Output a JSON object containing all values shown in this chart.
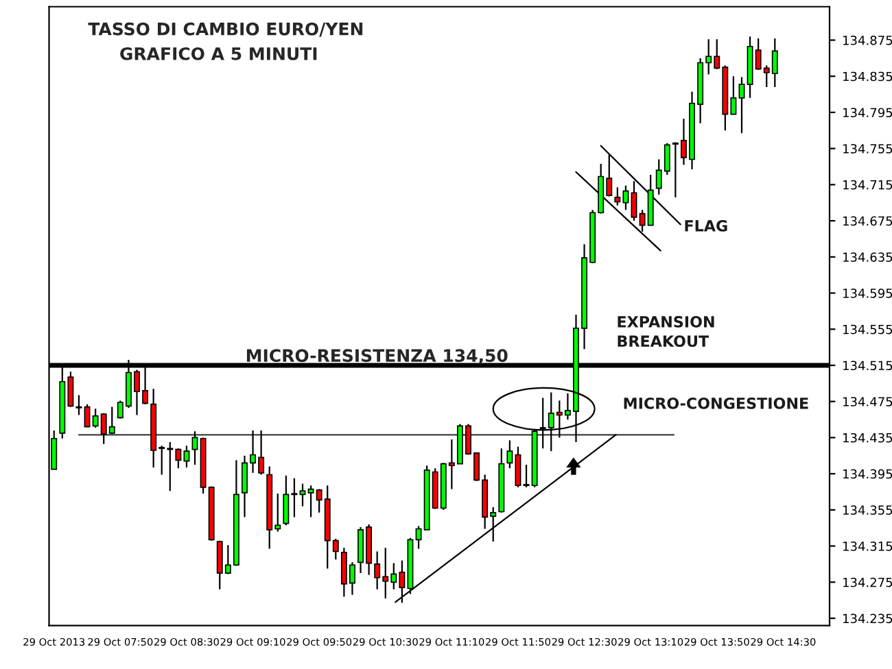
{
  "chart_data": {
    "type": "candlestick",
    "title": "TASSO DI CAMBIO EURO/YEN",
    "subtitle": "GRAFICO A 5 MINUTI",
    "xlim": [
      "2013-10-29T07:07",
      "2013-10-29T14:58"
    ],
    "xticks": [
      {
        "value": "2013-10-29T07:10",
        "label": "29 Oct 2013"
      },
      {
        "value": "2013-10-29T07:50",
        "label": "29 Oct 07:50"
      },
      {
        "value": "2013-10-29T08:30",
        "label": "29 Oct 08:30"
      },
      {
        "value": "2013-10-29T09:10",
        "label": "29 Oct 09:10"
      },
      {
        "value": "2013-10-29T09:50",
        "label": "29 Oct 09:50"
      },
      {
        "value": "2013-10-29T10:30",
        "label": "29 Oct 10:30"
      },
      {
        "value": "2013-10-29T11:10",
        "label": "29 Oct 11:10"
      },
      {
        "value": "2013-10-29T11:50",
        "label": "29 Oct 11:50"
      },
      {
        "value": "2013-10-29T12:30",
        "label": "29 Oct 12:30"
      },
      {
        "value": "2013-10-29T13:10",
        "label": "29 Oct 13:10"
      },
      {
        "value": "2013-10-29T13:50",
        "label": "29 Oct 13:50"
      },
      {
        "value": "2013-10-29T14:30",
        "label": "29 Oct 14:30"
      }
    ],
    "ylim": [
      134.227,
      134.912
    ],
    "yticks": [
      134.235,
      134.275,
      134.315,
      134.355,
      134.395,
      134.435,
      134.475,
      134.515,
      134.555,
      134.595,
      134.635,
      134.675,
      134.715,
      134.755,
      134.795,
      134.835,
      134.875
    ],
    "ref_lines": [
      {
        "axis": "y",
        "value": 134.515,
        "label": "MICRO-RESISTENZA 134,50",
        "color": "#000000"
      }
    ],
    "annotations": [
      {
        "text": "FLAG",
        "x": "2013-10-29T13:30",
        "y": 134.668
      },
      "EXPANSION\nBREAKOUT",
      "MICRO-CONGESTIONE"
    ],
    "series": [
      {
        "type": "candlestick",
        "x": [
          "2013-10-29T07:10",
          "2013-10-29T07:15",
          "2013-10-29T07:20",
          "2013-10-29T07:25",
          "2013-10-29T07:30",
          "2013-10-29T07:35",
          "2013-10-29T07:40",
          "2013-10-29T07:45",
          "2013-10-29T07:50",
          "2013-10-29T07:55",
          "2013-10-29T08:00",
          "2013-10-29T08:05",
          "2013-10-29T08:10",
          "2013-10-29T08:15",
          "2013-10-29T08:20",
          "2013-10-29T08:25",
          "2013-10-29T08:30",
          "2013-10-29T08:35",
          "2013-10-29T08:40",
          "2013-10-29T08:45",
          "2013-10-29T08:50",
          "2013-10-29T08:55",
          "2013-10-29T09:00",
          "2013-10-29T09:05",
          "2013-10-29T09:10",
          "2013-10-29T09:15",
          "2013-10-29T09:20",
          "2013-10-29T09:25",
          "2013-10-29T09:30",
          "2013-10-29T09:35",
          "2013-10-29T09:40",
          "2013-10-29T09:45",
          "2013-10-29T09:50",
          "2013-10-29T09:55",
          "2013-10-29T10:00",
          "2013-10-29T10:05",
          "2013-10-29T10:10",
          "2013-10-29T10:15",
          "2013-10-29T10:20",
          "2013-10-29T10:25",
          "2013-10-29T10:30",
          "2013-10-29T10:35",
          "2013-10-29T10:40",
          "2013-10-29T10:45",
          "2013-10-29T10:50",
          "2013-10-29T10:55",
          "2013-10-29T11:00",
          "2013-10-29T11:05",
          "2013-10-29T11:10",
          "2013-10-29T11:15",
          "2013-10-29T11:20",
          "2013-10-29T11:25",
          "2013-10-29T11:30",
          "2013-10-29T11:35",
          "2013-10-29T11:40",
          "2013-10-29T11:45",
          "2013-10-29T11:50",
          "2013-10-29T11:55",
          "2013-10-29T12:00",
          "2013-10-29T12:05",
          "2013-10-29T12:10",
          "2013-10-29T12:15",
          "2013-10-29T12:20",
          "2013-10-29T12:25",
          "2013-10-29T12:30",
          "2013-10-29T12:35",
          "2013-10-29T12:40",
          "2013-10-29T12:45",
          "2013-10-29T12:50",
          "2013-10-29T12:55",
          "2013-10-29T13:00",
          "2013-10-29T13:05",
          "2013-10-29T13:10",
          "2013-10-29T13:15",
          "2013-10-29T13:20",
          "2013-10-29T13:25",
          "2013-10-29T13:30",
          "2013-10-29T13:35",
          "2013-10-29T13:40",
          "2013-10-29T13:45",
          "2013-10-29T13:50",
          "2013-10-29T13:55",
          "2013-10-29T14:00",
          "2013-10-29T14:05",
          "2013-10-29T14:10",
          "2013-10-29T14:15",
          "2013-10-29T14:20",
          "2013-10-29T14:25"
        ],
        "ohlc": [
          [
            134.4,
            134.443,
            134.4,
            134.434
          ],
          [
            134.44,
            134.515,
            134.434,
            134.497
          ],
          [
            134.502,
            134.508,
            134.469,
            134.47
          ],
          [
            134.469,
            134.482,
            134.46,
            134.468
          ],
          [
            134.469,
            134.472,
            134.447,
            134.447
          ],
          [
            134.448,
            134.467,
            134.446,
            134.459
          ],
          [
            134.461,
            134.462,
            134.428,
            134.439
          ],
          [
            134.44,
            134.469,
            134.439,
            134.447
          ],
          [
            134.457,
            134.476,
            134.456,
            134.474
          ],
          [
            134.47,
            134.521,
            134.468,
            134.507
          ],
          [
            134.508,
            134.51,
            134.46,
            134.486
          ],
          [
            134.487,
            134.515,
            134.472,
            134.473
          ],
          [
            134.472,
            134.489,
            134.402,
            134.421
          ],
          [
            134.424,
            134.426,
            134.394,
            134.423
          ],
          [
            134.423,
            134.43,
            134.376,
            134.422
          ],
          [
            134.422,
            134.423,
            134.401,
            134.41
          ],
          [
            134.409,
            134.426,
            134.402,
            134.42
          ],
          [
            134.422,
            134.442,
            134.405,
            134.435
          ],
          [
            134.434,
            134.435,
            134.373,
            134.38
          ],
          [
            134.38,
            134.381,
            134.321,
            134.322
          ],
          [
            134.32,
            134.321,
            134.267,
            134.285
          ],
          [
            134.285,
            134.316,
            134.284,
            134.294
          ],
          [
            134.294,
            134.41,
            134.293,
            134.372
          ],
          [
            134.374,
            134.415,
            134.347,
            134.407
          ],
          [
            134.407,
            134.443,
            134.396,
            134.416
          ],
          [
            134.413,
            134.443,
            134.394,
            134.396
          ],
          [
            134.394,
            134.403,
            134.312,
            134.333
          ],
          [
            134.334,
            134.373,
            134.331,
            134.338
          ],
          [
            134.34,
            134.393,
            134.338,
            134.372
          ],
          [
            134.373,
            134.39,
            134.347,
            134.372
          ],
          [
            134.372,
            134.384,
            134.359,
            134.376
          ],
          [
            134.374,
            134.382,
            134.347,
            134.378
          ],
          [
            134.377,
            134.378,
            134.352,
            134.366
          ],
          [
            134.367,
            134.382,
            134.29,
            134.321
          ],
          [
            134.321,
            134.323,
            134.3,
            134.309
          ],
          [
            134.308,
            134.313,
            134.259,
            134.273
          ],
          [
            134.274,
            134.297,
            134.261,
            134.294
          ],
          [
            134.297,
            134.336,
            134.285,
            134.333
          ],
          [
            134.336,
            134.339,
            134.283,
            134.296
          ],
          [
            134.295,
            134.309,
            134.267,
            134.28
          ],
          [
            134.281,
            134.313,
            134.257,
            134.276
          ],
          [
            134.275,
            134.296,
            134.267,
            134.284
          ],
          [
            134.286,
            134.299,
            134.252,
            134.269
          ],
          [
            134.268,
            134.324,
            134.262,
            134.322
          ],
          [
            134.322,
            134.337,
            134.312,
            134.334
          ],
          [
            134.333,
            134.404,
            134.333,
            134.399
          ],
          [
            134.397,
            134.401,
            134.356,
            134.357
          ],
          [
            134.357,
            134.407,
            134.355,
            134.406
          ],
          [
            134.407,
            134.433,
            134.378,
            134.404
          ],
          [
            134.406,
            134.45,
            134.406,
            134.448
          ],
          [
            134.448,
            134.45,
            134.416,
            134.417
          ],
          [
            134.418,
            134.418,
            134.387,
            134.388
          ],
          [
            134.388,
            134.394,
            134.334,
            134.347
          ],
          [
            134.348,
            134.358,
            134.32,
            134.352
          ],
          [
            134.353,
            134.423,
            134.352,
            134.406
          ],
          [
            134.407,
            134.432,
            134.401,
            134.42
          ],
          [
            134.416,
            134.425,
            134.38,
            134.382
          ],
          [
            134.383,
            134.405,
            134.38,
            134.382
          ],
          [
            134.382,
            134.443,
            134.38,
            134.442
          ],
          [
            134.445,
            134.479,
            134.423,
            134.446
          ],
          [
            134.446,
            134.485,
            134.42,
            134.462
          ],
          [
            134.463,
            134.476,
            134.435,
            134.46
          ],
          [
            134.46,
            134.484,
            134.455,
            134.465
          ],
          [
            134.464,
            134.571,
            134.43,
            134.556
          ],
          [
            134.556,
            134.649,
            134.533,
            134.634
          ],
          [
            134.629,
            134.687,
            134.628,
            134.684
          ],
          [
            134.684,
            134.738,
            134.683,
            134.724
          ],
          [
            134.722,
            134.748,
            134.702,
            134.703
          ],
          [
            134.701,
            134.712,
            134.692,
            134.696
          ],
          [
            134.695,
            134.714,
            134.687,
            134.708
          ],
          [
            134.706,
            134.719,
            134.675,
            134.679
          ],
          [
            134.683,
            134.687,
            134.663,
            134.67
          ],
          [
            134.67,
            134.726,
            134.67,
            134.709
          ],
          [
            134.711,
            134.743,
            134.704,
            134.731
          ],
          [
            134.73,
            134.761,
            134.726,
            134.759
          ],
          [
            134.761,
            134.762,
            134.701,
            134.76
          ],
          [
            134.764,
            134.788,
            134.737,
            134.745
          ],
          [
            134.743,
            134.818,
            134.732,
            134.805
          ],
          [
            134.804,
            134.855,
            134.783,
            134.85
          ],
          [
            134.85,
            134.876,
            134.837,
            134.857
          ],
          [
            134.857,
            134.876,
            134.843,
            134.844
          ],
          [
            134.845,
            134.847,
            134.775,
            134.793
          ],
          [
            134.793,
            134.835,
            134.793,
            134.811
          ],
          [
            134.811,
            134.834,
            134.772,
            134.826
          ],
          [
            134.826,
            134.879,
            134.811,
            134.868
          ],
          [
            134.864,
            134.877,
            134.842,
            134.843
          ],
          [
            134.844,
            134.847,
            134.823,
            134.839
          ],
          [
            134.838,
            134.877,
            134.823,
            134.863
          ]
        ],
        "colors": [
          "#00ff00",
          "#00ff00",
          "#ff0000",
          "#ff0000",
          "#ff0000",
          "#00ff00",
          "#ff0000",
          "#00ff00",
          "#00ff00",
          "#00ff00",
          "#ff0000",
          "#ff0000",
          "#ff0000",
          "#ff0000",
          "#ff0000",
          "#ff0000",
          "#00ff00",
          "#00ff00",
          "#ff0000",
          "#ff0000",
          "#ff0000",
          "#00ff00",
          "#00ff00",
          "#00ff00",
          "#00ff00",
          "#ff0000",
          "#ff0000",
          "#00ff00",
          "#00ff00",
          "#ff0000",
          "#00ff00",
          "#00ff00",
          "#ff0000",
          "#ff0000",
          "#ff0000",
          "#ff0000",
          "#00ff00",
          "#00ff00",
          "#ff0000",
          "#ff0000",
          "#ff0000",
          "#00ff00",
          "#ff0000",
          "#00ff00",
          "#00ff00",
          "#00ff00",
          "#ff0000",
          "#00ff00",
          "#ff0000",
          "#00ff00",
          "#ff0000",
          "#ff0000",
          "#ff0000",
          "#00ff00",
          "#00ff00",
          "#00ff00",
          "#ff0000",
          "#ff0000",
          "#00ff00",
          "#00ff00",
          "#00ff00",
          "#ff0000",
          "#00ff00",
          "#00ff00",
          "#00ff00",
          "#00ff00",
          "#00ff00",
          "#ff0000",
          "#ff0000",
          "#00ff00",
          "#ff0000",
          "#ff0000",
          "#00ff00",
          "#00ff00",
          "#00ff00",
          "#ff0000",
          "#ff0000",
          "#00ff00",
          "#00ff00",
          "#00ff00",
          "#ff0000",
          "#ff0000",
          "#00ff00",
          "#00ff00",
          "#00ff00",
          "#ff0000",
          "#ff0000",
          "#00ff00"
        ]
      },
      {
        "type": "line",
        "x": [
          "2013-10-29T07:25",
          "2013-10-29T13:24"
        ],
        "values": [
          134.438,
          134.438
        ],
        "color": "#404040"
      },
      {
        "type": "line",
        "x": [
          "2013-10-29T10:36",
          "2013-10-29T12:49"
        ],
        "values": [
          134.253,
          134.438
        ],
        "color": "#000000"
      },
      {
        "type": "line",
        "x": [
          "2013-10-29T12:40",
          "2013-10-29T13:28"
        ],
        "values": [
          134.758,
          134.671
        ],
        "color": "#000000"
      },
      {
        "type": "line",
        "x": [
          "2013-10-29T12:25",
          "2013-10-29T13:16"
        ],
        "values": [
          134.729,
          134.642
        ],
        "color": "#000000"
      }
    ]
  }
}
